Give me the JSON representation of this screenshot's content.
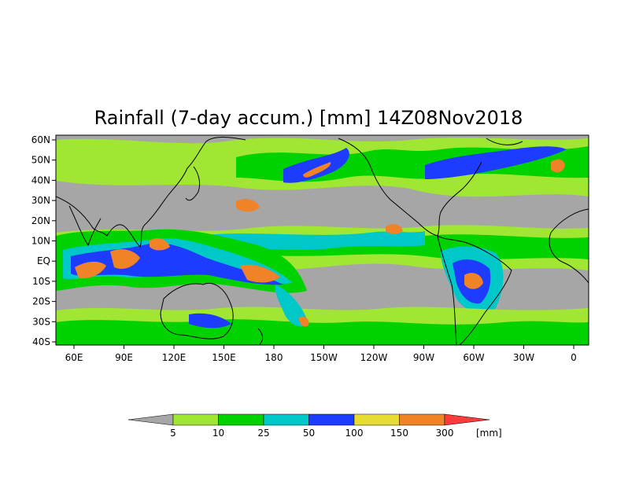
{
  "title": "Rainfall (7-day accum.) [mm] 14Z08Nov2018",
  "longitude_labels": [
    "60E",
    "90E",
    "120E",
    "150E",
    "180",
    "150W",
    "120W",
    "90W",
    "60W",
    "30W",
    "0"
  ],
  "latitude_labels": [
    "60N",
    "50N",
    "40N",
    "30N",
    "20N",
    "10N",
    "EQ",
    "10S",
    "20S",
    "30S",
    "40S"
  ],
  "colorbar": {
    "unit": "[mm]",
    "levels": [
      "5",
      "10",
      "25",
      "50",
      "100",
      "150",
      "300"
    ],
    "colors": [
      "#a6a6a6",
      "#a0e632",
      "#00d200",
      "#00c8c8",
      "#1e3cff",
      "#e6dc32",
      "#f08228",
      "#fa3c3c"
    ]
  },
  "colors": {
    "land_outline": "#000000",
    "background": "#a6a6a6"
  }
}
